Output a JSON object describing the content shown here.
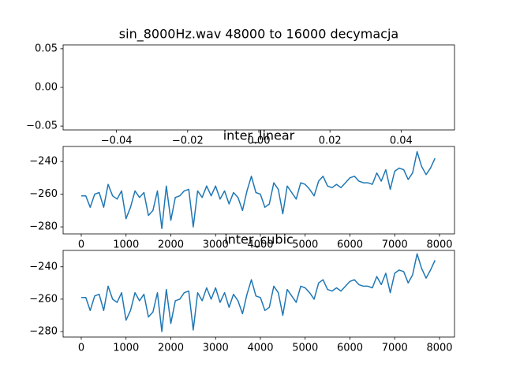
{
  "chart_data": [
    {
      "type": "line",
      "title": "sin_8000Hz.wav 48000 to 16000 decymacja",
      "x": [],
      "values": [],
      "color": "#1f77b4",
      "xlim": [
        -0.055,
        0.055
      ],
      "ylim": [
        -0.055,
        0.055
      ],
      "xticks": [
        {
          "value": -0.04,
          "label": "−0.04"
        },
        {
          "value": -0.02,
          "label": "−0.02"
        },
        {
          "value": 0,
          "label": "0.00"
        },
        {
          "value": 0.02,
          "label": "0.02"
        },
        {
          "value": 0.04,
          "label": "0.04"
        }
      ],
      "yticks": [
        {
          "value": -0.05,
          "label": "−0.05"
        },
        {
          "value": 0,
          "label": "0.00"
        },
        {
          "value": 0.05,
          "label": "0.05"
        }
      ]
    },
    {
      "type": "line",
      "title": "inter_linear",
      "color": "#1f77b4",
      "x": [
        0,
        100,
        200,
        300,
        400,
        500,
        600,
        700,
        800,
        900,
        1000,
        1100,
        1200,
        1300,
        1400,
        1500,
        1600,
        1700,
        1800,
        1900,
        2000,
        2100,
        2200,
        2300,
        2400,
        2500,
        2600,
        2700,
        2800,
        2900,
        3000,
        3100,
        3200,
        3300,
        3400,
        3500,
        3600,
        3700,
        3800,
        3900,
        4000,
        4100,
        4200,
        4300,
        4400,
        4500,
        4600,
        4700,
        4800,
        4900,
        5000,
        5100,
        5200,
        5300,
        5400,
        5500,
        5600,
        5700,
        5800,
        5900,
        6000,
        6100,
        6200,
        6300,
        6400,
        6500,
        6600,
        6700,
        6800,
        6900,
        7000,
        7100,
        7200,
        7300,
        7400,
        7500,
        7600,
        7700,
        7800,
        7900
      ],
      "values": [
        -261,
        -261,
        -268,
        -260,
        -259,
        -268,
        -254,
        -261,
        -263,
        -258,
        -275,
        -268,
        -258,
        -262,
        -259,
        -273,
        -270,
        -258,
        -281,
        -255,
        -276,
        -262,
        -261,
        -258,
        -257,
        -280,
        -258,
        -262,
        -255,
        -261,
        -255,
        -263,
        -258,
        -266,
        -259,
        -262,
        -270,
        -258,
        -249,
        -259,
        -260,
        -268,
        -266,
        -253,
        -257,
        -272,
        -255,
        -259,
        -263,
        -253,
        -254,
        -257,
        -261,
        -252,
        -249,
        -255,
        -256,
        -254,
        -256,
        -253,
        -250,
        -249,
        -252,
        -253,
        -253,
        -254,
        -247,
        -252,
        -245,
        -257,
        -246,
        -244,
        -245,
        -251,
        -247,
        -234,
        -243,
        -248,
        -244,
        -238
      ],
      "xlim": [
        -405,
        8335
      ],
      "ylim": [
        -284.3,
        -230.8
      ],
      "xticks": [
        0,
        1000,
        2000,
        3000,
        4000,
        5000,
        6000,
        7000,
        8000
      ],
      "yticks": [
        {
          "value": -280,
          "label": "−280"
        },
        {
          "value": -260,
          "label": "−260"
        },
        {
          "value": -240,
          "label": "−240"
        }
      ]
    },
    {
      "type": "line",
      "title": "inter_cubic",
      "color": "#1f77b4",
      "x": [
        0,
        100,
        200,
        300,
        400,
        500,
        600,
        700,
        800,
        900,
        1000,
        1100,
        1200,
        1300,
        1400,
        1500,
        1600,
        1700,
        1800,
        1900,
        2000,
        2100,
        2200,
        2300,
        2400,
        2500,
        2600,
        2700,
        2800,
        2900,
        3000,
        3100,
        3200,
        3300,
        3400,
        3500,
        3600,
        3700,
        3800,
        3900,
        4000,
        4100,
        4200,
        4300,
        4400,
        4500,
        4600,
        4700,
        4800,
        4900,
        5000,
        5100,
        5200,
        5300,
        5400,
        5500,
        5600,
        5700,
        5800,
        5900,
        6000,
        6100,
        6200,
        6300,
        6400,
        6500,
        6600,
        6700,
        6800,
        6900,
        7000,
        7100,
        7200,
        7300,
        7400,
        7500,
        7600,
        7700,
        7800,
        7900
      ],
      "values": [
        -259,
        -259,
        -267,
        -258,
        -257,
        -267,
        -252,
        -260,
        -262,
        -256,
        -273,
        -267,
        -256,
        -261,
        -257,
        -271,
        -268,
        -256,
        -280,
        -254,
        -275,
        -261,
        -260,
        -256,
        -255,
        -279,
        -256,
        -261,
        -253,
        -260,
        -253,
        -262,
        -256,
        -265,
        -257,
        -261,
        -269,
        -257,
        -248,
        -258,
        -259,
        -267,
        -265,
        -252,
        -256,
        -270,
        -254,
        -258,
        -262,
        -252,
        -253,
        -256,
        -260,
        -250,
        -248,
        -254,
        -255,
        -253,
        -255,
        -252,
        -249,
        -248,
        -251,
        -252,
        -252,
        -253,
        -246,
        -251,
        -244,
        -256,
        -244,
        -242,
        -243,
        -250,
        -245,
        -232,
        -241,
        -247,
        -242,
        -236
      ],
      "xlim": [
        -405,
        8335
      ],
      "ylim": [
        -283.4,
        -229.9
      ],
      "xticks": [
        0,
        1000,
        2000,
        3000,
        4000,
        5000,
        6000,
        7000,
        8000
      ],
      "yticks": [
        {
          "value": -280,
          "label": "−280"
        },
        {
          "value": -260,
          "label": "−260"
        },
        {
          "value": -240,
          "label": "−240"
        }
      ]
    }
  ]
}
